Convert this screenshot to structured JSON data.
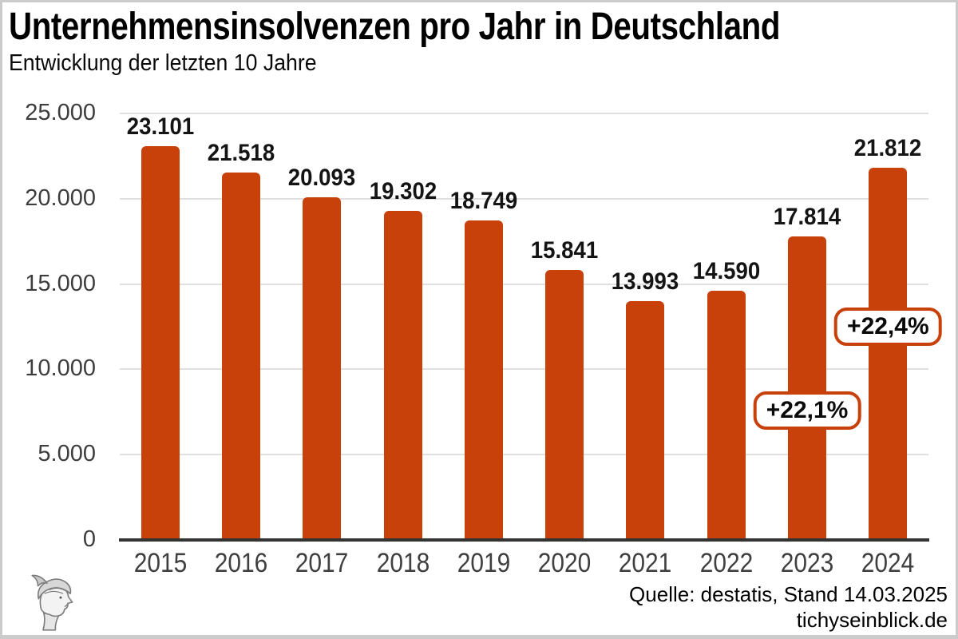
{
  "header": {
    "title": "Unternehmensinsolvenzen pro Jahr in Deutschland",
    "subtitle": "Entwicklung der letzten 10 Jahre"
  },
  "footer": {
    "source": "Quelle: destatis, Stand 14.03.2025",
    "website": "tichyseinblick.de",
    "logo_icon": "hermes-head-logo"
  },
  "colors": {
    "bar": "#C8400A",
    "badge": "#C8400A",
    "grid": "#E0E0E0",
    "axis": "#333333",
    "frame": "#CBCBCB"
  },
  "chart_data": {
    "type": "bar",
    "title": "Unternehmensinsolvenzen pro Jahr in Deutschland",
    "subtitle": "Entwicklung der letzten 10 Jahre",
    "categories": [
      "2015",
      "2016",
      "2017",
      "2018",
      "2019",
      "2020",
      "2021",
      "2022",
      "2023",
      "2024"
    ],
    "values": [
      23101,
      21518,
      20093,
      19302,
      18749,
      15841,
      13993,
      14590,
      17814,
      21812
    ],
    "value_labels": [
      "23.101",
      "21.518",
      "20.093",
      "19.302",
      "18.749",
      "15.841",
      "13.993",
      "14.590",
      "17.814",
      "21.812"
    ],
    "xlabel": "",
    "ylabel": "",
    "ylim": [
      0,
      25000
    ],
    "yticks": [
      {
        "value": 0,
        "label": "0"
      },
      {
        "value": 5000,
        "label": "5.000"
      },
      {
        "value": 10000,
        "label": "10.000"
      },
      {
        "value": 15000,
        "label": "15.000"
      },
      {
        "value": 20000,
        "label": "20.000"
      },
      {
        "value": 25000,
        "label": "25.000"
      }
    ],
    "grid": "horizontal-only",
    "legend": "none",
    "annotations": [
      {
        "category": "2023",
        "label": "+22,1%"
      },
      {
        "category": "2024",
        "label": "+22,4%"
      }
    ]
  }
}
